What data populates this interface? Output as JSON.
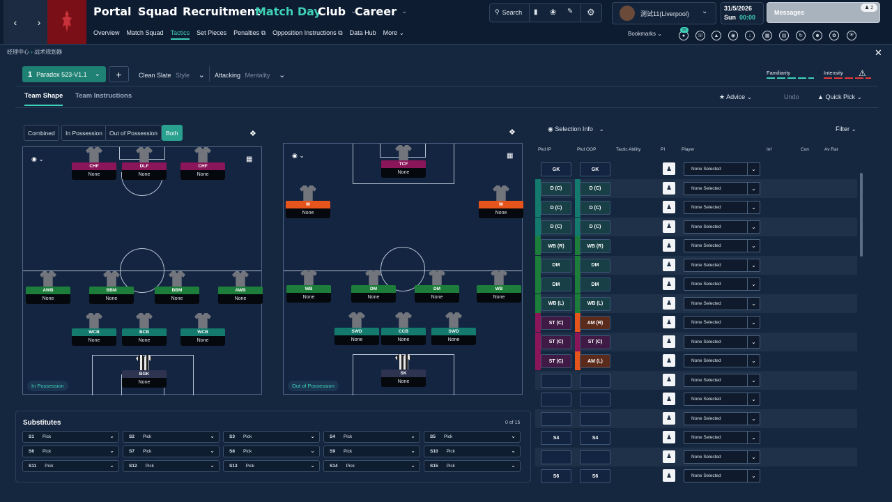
{
  "nav": {
    "main": [
      "Portal",
      "Squad",
      "Recruitment",
      "Match Day",
      "Club",
      "Career"
    ],
    "sub": [
      "Overview",
      "Match Squad",
      "Tactics",
      "Set Pieces",
      "Penalties",
      "Opposition Instructions",
      "Data Hub",
      "More"
    ],
    "search_label": "Search",
    "manager_name": "测试11(Liverpool)",
    "date": "31/5/2026",
    "day": "Sun",
    "time": "00:00",
    "messages_label": "Messages",
    "messages_count": "2",
    "bookmarks_label": "Bookmarks",
    "bookmark_badge": "99",
    "accent": "#3fd1b8"
  },
  "breadcrumb": {
    "root": "经理中心",
    "current": "战术规划器"
  },
  "tactic": {
    "slot": "1",
    "name": "Paradox 523-V1.1",
    "plus": "+",
    "style_value": "Clean Slate",
    "style_label": "Style",
    "mentality_value": "Attacking",
    "mentality_label": "Mentality",
    "familiarity_label": "Familiarity",
    "intensity_label": "Intensity"
  },
  "tabs": {
    "shape": "Team Shape",
    "instructions": "Team Instructions"
  },
  "actions": {
    "advice": "Advice",
    "undo": "Undo",
    "quick_pick": "Quick Pick"
  },
  "phase_buttons": [
    "Combined",
    "In Possession",
    "Out of Possession",
    "Both"
  ],
  "in_possession": {
    "label": "In Possession",
    "players": [
      {
        "role": "CHF",
        "name": "None",
        "color": "#8a1559"
      },
      {
        "role": "DLF",
        "name": "None",
        "color": "#8a1559"
      },
      {
        "role": "CHF",
        "name": "None",
        "color": "#8a1559"
      },
      {
        "role": "AWB",
        "name": "None",
        "color": "#1d7d3a"
      },
      {
        "role": "BBM",
        "name": "None",
        "color": "#1d7d3a"
      },
      {
        "role": "BBM",
        "name": "None",
        "color": "#1d7d3a"
      },
      {
        "role": "AWB",
        "name": "None",
        "color": "#1d7d3a"
      },
      {
        "role": "WCB",
        "name": "None",
        "color": "#137a6d"
      },
      {
        "role": "BCB",
        "name": "None",
        "color": "#137a6d"
      },
      {
        "role": "WCB",
        "name": "None",
        "color": "#137a6d"
      },
      {
        "role": "BGK",
        "name": "None",
        "color": "#2e3350"
      }
    ]
  },
  "out_possession": {
    "label": "Out of Possession",
    "players": [
      {
        "role": "TCF",
        "name": "None",
        "color": "#8a1559"
      },
      {
        "role": "W",
        "name": "None",
        "color": "#e4541b"
      },
      {
        "role": "W",
        "name": "None",
        "color": "#e4541b"
      },
      {
        "role": "WB",
        "name": "None",
        "color": "#1d7d3a"
      },
      {
        "role": "DM",
        "name": "None",
        "color": "#1d7d3a"
      },
      {
        "role": "DM",
        "name": "None",
        "color": "#1d7d3a"
      },
      {
        "role": "WB",
        "name": "None",
        "color": "#1d7d3a"
      },
      {
        "role": "SWD",
        "name": "None",
        "color": "#137a6d"
      },
      {
        "role": "CCB",
        "name": "None",
        "color": "#137a6d"
      },
      {
        "role": "SWD",
        "name": "None",
        "color": "#137a6d"
      },
      {
        "role": "SK",
        "name": "None",
        "color": "#2e3350"
      }
    ]
  },
  "substitutes": {
    "title": "Substitutes",
    "count": "0 of 15",
    "slots": [
      {
        "id": "S1",
        "value": "Pick"
      },
      {
        "id": "S2",
        "value": "Pick"
      },
      {
        "id": "S3",
        "value": "Pick"
      },
      {
        "id": "S4",
        "value": "Pick"
      },
      {
        "id": "S5",
        "value": "Pick"
      },
      {
        "id": "S6",
        "value": "Pick"
      },
      {
        "id": "S7",
        "value": "Pick"
      },
      {
        "id": "S8",
        "value": "Pick"
      },
      {
        "id": "S9",
        "value": "Pick"
      },
      {
        "id": "S10",
        "value": "Pick"
      },
      {
        "id": "S11",
        "value": "Pick"
      },
      {
        "id": "S12",
        "value": "Pick"
      },
      {
        "id": "S13",
        "value": "Pick"
      },
      {
        "id": "S14",
        "value": "Pick"
      },
      {
        "id": "S15",
        "value": "Pick"
      }
    ]
  },
  "selection": {
    "title": "Selection Info",
    "filter": "Filter",
    "columns": [
      "Pkd IP",
      "Pkd OOP",
      "Tactic Ability",
      "PI",
      "Player",
      "Inf",
      "Con",
      "Av Rat"
    ],
    "rows": [
      {
        "ip": "GK",
        "oop": "GK",
        "player": "None Selected",
        "s1": "",
        "s2": ""
      },
      {
        "ip": "D (C)",
        "oop": "D (C)",
        "player": "None Selected",
        "s1": "#137a6d",
        "s2": "#137a6d"
      },
      {
        "ip": "D (C)",
        "oop": "D (C)",
        "player": "None Selected",
        "s1": "#137a6d",
        "s2": "#137a6d"
      },
      {
        "ip": "D (C)",
        "oop": "D (C)",
        "player": "None Selected",
        "s1": "#137a6d",
        "s2": "#137a6d"
      },
      {
        "ip": "WB (R)",
        "oop": "WB (R)",
        "player": "None Selected",
        "s1": "#1d7d3a",
        "s2": "#1d7d3a"
      },
      {
        "ip": "DM",
        "oop": "DM",
        "player": "None Selected",
        "s1": "#1d7d3a",
        "s2": "#1d7d3a"
      },
      {
        "ip": "DM",
        "oop": "DM",
        "player": "None Selected",
        "s1": "#1d7d3a",
        "s2": "#1d7d3a"
      },
      {
        "ip": "WB (L)",
        "oop": "WB (L)",
        "player": "None Selected",
        "s1": "#1d7d3a",
        "s2": "#1d7d3a"
      },
      {
        "ip": "ST (C)",
        "oop": "AM (R)",
        "player": "None Selected",
        "s1": "#8a1559",
        "s2": "#e4541b"
      },
      {
        "ip": "ST (C)",
        "oop": "ST (C)",
        "player": "None Selected",
        "s1": "#8a1559",
        "s2": "#8a1559"
      },
      {
        "ip": "ST (C)",
        "oop": "AM (L)",
        "player": "None Selected",
        "s1": "#8a1559",
        "s2": "#e4541b"
      },
      {
        "ip": "",
        "oop": "",
        "player": "None Selected",
        "s1": "",
        "s2": ""
      },
      {
        "ip": "",
        "oop": "",
        "player": "None Selected",
        "s1": "",
        "s2": ""
      },
      {
        "ip": "",
        "oop": "",
        "player": "None Selected",
        "s1": "",
        "s2": ""
      },
      {
        "ip": "S4",
        "oop": "S4",
        "player": "None Selected",
        "s1": "",
        "s2": ""
      },
      {
        "ip": "",
        "oop": "",
        "player": "None Selected",
        "s1": "",
        "s2": ""
      },
      {
        "ip": "S6",
        "oop": "S6",
        "player": "None Selected",
        "s1": "",
        "s2": ""
      }
    ]
  }
}
